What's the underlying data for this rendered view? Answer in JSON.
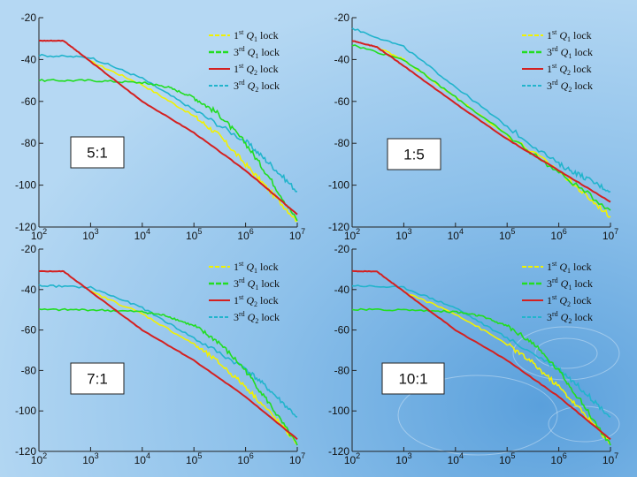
{
  "colors": {
    "background": "#7fb6e6",
    "box_fill": "#ffffff",
    "series": [
      "#f2f200",
      "#22dd22",
      "#d42020",
      "#22b4cc"
    ]
  },
  "legend_entries": [
    "1st Q1 lock",
    "3rd Q1 lock",
    "1st Q2 lock",
    "3rd Q2 lock"
  ],
  "chart_data": [
    {
      "type": "line",
      "title": "5:1",
      "xscale": "log",
      "xlim": [
        100,
        10000000
      ],
      "ylim": [
        -120,
        -20
      ],
      "x_ticks": [
        "10^2",
        "10^3",
        "10^4",
        "10^5",
        "10^6",
        "10^7"
      ],
      "y_ticks": [
        -20,
        -40,
        -60,
        -80,
        -100,
        -120
      ],
      "series": [
        {
          "name": "1st Q1 lock",
          "x": [
            1000,
            10000,
            100000,
            300000,
            1000000,
            3000000,
            10000000
          ],
          "values": [
            -41,
            -52,
            -67,
            -76,
            -90,
            -103,
            -117
          ]
        },
        {
          "name": "3rd Q1 lock",
          "x": [
            100,
            1000,
            10000,
            30000,
            100000,
            300000,
            1000000,
            3000000,
            10000000
          ],
          "values": [
            -50,
            -50,
            -51,
            -53,
            -58,
            -66,
            -80,
            -97,
            -117
          ]
        },
        {
          "name": "1st Q2 lock",
          "x": [
            100,
            300,
            1000,
            10000,
            100000,
            1000000,
            10000000
          ],
          "values": [
            -31,
            -31,
            -41,
            -60,
            -75,
            -93,
            -114
          ]
        },
        {
          "name": "3rd Q2 lock",
          "x": [
            100,
            1000,
            10000,
            100000,
            1000000,
            3000000,
            10000000
          ],
          "values": [
            -38,
            -39,
            -49,
            -64,
            -79,
            -90,
            -103
          ]
        }
      ]
    },
    {
      "type": "line",
      "title": "1:5",
      "xscale": "log",
      "xlim": [
        100,
        10000000
      ],
      "ylim": [
        -120,
        -20
      ],
      "x_ticks": [
        "10^2",
        "10^3",
        "10^4",
        "10^5",
        "10^6",
        "10^7"
      ],
      "y_ticks": [
        -20,
        -40,
        -60,
        -80,
        -100,
        -120
      ],
      "series": [
        {
          "name": "1st Q1 lock",
          "x": [
            300,
            1000,
            10000,
            100000,
            1000000,
            3000000,
            10000000
          ],
          "values": [
            -34,
            -40,
            -58,
            -76,
            -93,
            -104,
            -115
          ]
        },
        {
          "name": "3rd Q1 lock",
          "x": [
            100,
            1000,
            10000,
            100000,
            1000000,
            10000000
          ],
          "values": [
            -33,
            -40,
            -58,
            -76,
            -94,
            -112
          ]
        },
        {
          "name": "1st Q2 lock",
          "x": [
            100,
            300,
            1000,
            10000,
            100000,
            1000000,
            10000000
          ],
          "values": [
            -31,
            -34,
            -43,
            -61,
            -78,
            -93,
            -108
          ]
        },
        {
          "name": "3rd Q2 lock",
          "x": [
            100,
            1000,
            10000,
            100000,
            1000000,
            3000000,
            10000000
          ],
          "values": [
            -25,
            -34,
            -53,
            -72,
            -90,
            -96,
            -103
          ]
        }
      ]
    },
    {
      "type": "line",
      "title": "7:1",
      "xscale": "log",
      "xlim": [
        100,
        10000000
      ],
      "ylim": [
        -120,
        -20
      ],
      "x_ticks": [
        "10^2",
        "10^3",
        "10^4",
        "10^5",
        "10^6",
        "10^7"
      ],
      "y_ticks": [
        -20,
        -40,
        -60,
        -80,
        -100,
        -120
      ],
      "series": [
        {
          "name": "1st Q1 lock",
          "x": [
            1000,
            10000,
            100000,
            300000,
            1000000,
            3000000,
            10000000
          ],
          "values": [
            -41,
            -52,
            -67,
            -76,
            -88,
            -101,
            -116
          ]
        },
        {
          "name": "3rd Q1 lock",
          "x": [
            100,
            1000,
            10000,
            30000,
            100000,
            300000,
            1000000,
            3000000,
            10000000
          ],
          "values": [
            -50,
            -50,
            -51,
            -53,
            -58,
            -66,
            -80,
            -97,
            -117
          ]
        },
        {
          "name": "1st Q2 lock",
          "x": [
            100,
            300,
            1000,
            10000,
            100000,
            1000000,
            10000000
          ],
          "values": [
            -31,
            -31,
            -41,
            -60,
            -75,
            -93,
            -114
          ]
        },
        {
          "name": "3rd Q2 lock",
          "x": [
            100,
            1000,
            10000,
            100000,
            1000000,
            3000000,
            10000000
          ],
          "values": [
            -38,
            -39,
            -49,
            -64,
            -79,
            -90,
            -103
          ]
        }
      ]
    },
    {
      "type": "line",
      "title": "10:1",
      "xscale": "log",
      "xlim": [
        100,
        10000000
      ],
      "ylim": [
        -120,
        -20
      ],
      "x_ticks": [
        "10^2",
        "10^3",
        "10^4",
        "10^5",
        "10^6",
        "10^7"
      ],
      "y_ticks": [
        -20,
        -40,
        -60,
        -80,
        -100,
        -120
      ],
      "series": [
        {
          "name": "1st Q1 lock",
          "x": [
            1000,
            10000,
            100000,
            300000,
            1000000,
            3000000,
            10000000
          ],
          "values": [
            -41,
            -52,
            -67,
            -76,
            -88,
            -101,
            -116
          ]
        },
        {
          "name": "3rd Q1 lock",
          "x": [
            100,
            1000,
            10000,
            30000,
            100000,
            300000,
            1000000,
            3000000,
            10000000
          ],
          "values": [
            -50,
            -50,
            -51,
            -53,
            -58,
            -66,
            -80,
            -97,
            -117
          ]
        },
        {
          "name": "1st Q2 lock",
          "x": [
            100,
            300,
            1000,
            10000,
            100000,
            1000000,
            10000000
          ],
          "values": [
            -31,
            -31,
            -41,
            -60,
            -75,
            -93,
            -114
          ]
        },
        {
          "name": "3rd Q2 lock",
          "x": [
            100,
            1000,
            10000,
            100000,
            1000000,
            3000000,
            10000000
          ],
          "values": [
            -38,
            -39,
            -49,
            -64,
            -79,
            -90,
            -103
          ]
        }
      ]
    }
  ]
}
